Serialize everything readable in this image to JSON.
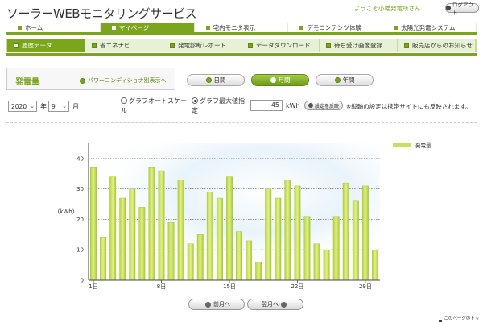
{
  "header": {
    "site_title": "ソーラーWEBモニタリングサービス",
    "welcome": "ようこそ小幡発電所さん",
    "logout": "ログアウト"
  },
  "main_nav": [
    {
      "label": "ホーム",
      "active": false
    },
    {
      "label": "マイページ",
      "active": true
    },
    {
      "label": "宅内モニタ表示",
      "active": false
    },
    {
      "label": "デモコンテンツ体験",
      "active": false
    },
    {
      "label": "太陽光発電システム",
      "active": false
    }
  ],
  "sub_nav": [
    {
      "label": "履歴データ",
      "active": true
    },
    {
      "label": "省エネナビ",
      "active": false
    },
    {
      "label": "発電診断レポート",
      "active": false
    },
    {
      "label": "データダウンロード",
      "active": false
    },
    {
      "label": "待ち受け画像登録",
      "active": false
    },
    {
      "label": "販売店からのお知らせ",
      "active": false
    }
  ],
  "section": {
    "title": "発電量",
    "power_conditioner_link": "パワーコンディショナ別表示へ"
  },
  "period_tabs": [
    {
      "label": "日間",
      "active": false
    },
    {
      "label": "月間",
      "active": true
    },
    {
      "label": "年間",
      "active": false
    }
  ],
  "controls": {
    "year_value": "2020",
    "year_suffix": "年",
    "month_value": "9",
    "month_suffix": "月",
    "auto_scale_label_1": "グラフオートスケー",
    "auto_scale_label_2": "ル",
    "max_value_label_1": "グラフ最大値指",
    "max_value_label_2": "定",
    "max_value": "45",
    "unit": "kWh",
    "apply_button": "設定を反映",
    "note": "※縦軸の設定は携帯サイトにも反映されます。"
  },
  "chart_data": {
    "type": "bar",
    "ylabel": "(kWh)",
    "ylim": [
      0,
      45
    ],
    "yticks": [
      0,
      10,
      20,
      30,
      40
    ],
    "x": [
      1,
      2,
      3,
      4,
      5,
      6,
      7,
      8,
      9,
      10,
      11,
      12,
      13,
      14,
      15,
      16,
      17,
      18,
      19,
      20,
      21,
      22,
      23,
      24,
      25,
      26,
      27,
      28,
      29,
      30
    ],
    "xtick_labels": [
      {
        "day": 1,
        "label": "1日"
      },
      {
        "day": 8,
        "label": "8日"
      },
      {
        "day": 15,
        "label": "15日"
      },
      {
        "day": 22,
        "label": "22日"
      },
      {
        "day": 29,
        "label": "29日"
      }
    ],
    "series": [
      {
        "name": "発電量",
        "color": "#c8e060",
        "values": [
          37,
          14,
          34,
          27,
          30,
          24,
          37,
          36,
          19,
          33,
          12,
          15,
          29,
          27,
          34,
          16,
          13,
          6,
          30,
          27,
          33,
          31,
          21,
          12,
          10,
          21,
          32,
          26,
          31,
          10
        ]
      }
    ],
    "grid": true,
    "legend": "top-right"
  },
  "footer": {
    "prev_month": "前月へ",
    "next_month": "翌月へ",
    "page_top": "このページのトップへ"
  }
}
